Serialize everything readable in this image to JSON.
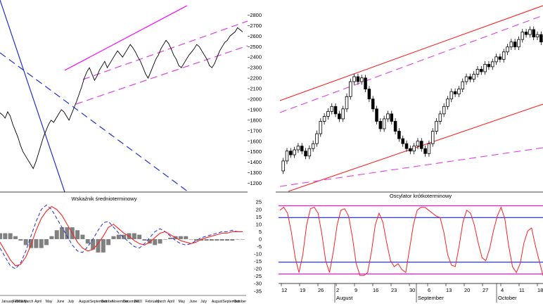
{
  "chart_data": [
    {
      "type": "line",
      "panel": "left-price",
      "title": "",
      "y_ticks": [
        2800,
        2700,
        2600,
        2500,
        2400,
        2300,
        2200,
        2100,
        2000,
        1900,
        1800,
        1700,
        1600,
        1500,
        1400,
        1300,
        1200
      ],
      "ylim": [
        1150,
        2850
      ],
      "grid": false,
      "series": [
        {
          "values": [
            1870,
            1850,
            1820,
            1880,
            1840,
            1760,
            1700,
            1640,
            1560,
            1500,
            1460,
            1420,
            1380,
            1340,
            1400,
            1480,
            1560,
            1640,
            1700,
            1760,
            1800,
            1780,
            1820,
            1860,
            1900,
            1880,
            1840,
            1800,
            1860,
            1920,
            1980,
            2050,
            2120,
            2200,
            2260,
            2300,
            2240,
            2180,
            2220,
            2280,
            2320,
            2360,
            2300,
            2340,
            2380,
            2420,
            2460,
            2430,
            2400,
            2440,
            2480,
            2520,
            2490,
            2450,
            2400,
            2360,
            2300,
            2240,
            2200,
            2260,
            2320,
            2380,
            2420,
            2480,
            2520,
            2560,
            2530,
            2480,
            2420,
            2380,
            2320,
            2300,
            2340,
            2380,
            2420,
            2450,
            2480,
            2520,
            2500,
            2460,
            2420,
            2380,
            2320,
            2300,
            2340,
            2400,
            2460,
            2500,
            2540,
            2560,
            2600,
            2620,
            2640,
            2680,
            2660,
            2640
          ]
        }
      ]
    },
    {
      "type": "line",
      "panel": "left-indicator",
      "title": "Wskaźnik średnioterminowy",
      "x_ticks": [
        "January 2009",
        "February",
        "March",
        "April",
        "May",
        "June",
        "July",
        "August",
        "September",
        "October",
        "November",
        "December",
        "2010",
        "February",
        "March",
        "April",
        "May",
        "June",
        "July",
        "August",
        "September",
        "October"
      ],
      "y_ticks": [
        25,
        20,
        15,
        10,
        5,
        0,
        -5,
        -10,
        -15,
        -20,
        -25,
        -30,
        -35
      ],
      "ylim": [
        -37,
        27
      ],
      "series": [
        {
          "values": [
            -2,
            -8,
            -14,
            -18,
            -17,
            -12,
            -4,
            6,
            14,
            19,
            22,
            20,
            16,
            10,
            4,
            -2,
            -6,
            -8,
            -7,
            -3,
            2,
            8,
            10,
            7,
            4,
            2,
            -1,
            -3,
            -4,
            -2,
            1,
            4,
            5,
            3,
            1,
            -1,
            -2,
            -3,
            -2,
            0,
            1,
            2,
            3,
            4,
            4,
            5,
            5,
            5
          ]
        },
        {
          "values": [
            -6,
            -12,
            -18,
            -20,
            -16,
            -8,
            2,
            12,
            20,
            23,
            20,
            14,
            8,
            2,
            -4,
            -8,
            -9,
            -5,
            0,
            6,
            11,
            12,
            8,
            4,
            1,
            -2,
            -5,
            -6,
            -3,
            1,
            5,
            7,
            5,
            2,
            -1,
            -3,
            -4,
            -3,
            -1,
            1,
            2,
            3,
            4,
            5,
            5,
            6,
            5,
            5
          ]
        }
      ]
    },
    {
      "type": "candlestick",
      "panel": "right-price",
      "title": "",
      "y_ticks": [],
      "grid": false,
      "candles": [
        {
          "o": 1300,
          "c": 1380
        },
        {
          "o": 1380,
          "c": 1460
        },
        {
          "o": 1460,
          "c": 1430
        },
        {
          "o": 1430,
          "c": 1470
        },
        {
          "o": 1470,
          "c": 1500
        },
        {
          "o": 1500,
          "c": 1460
        },
        {
          "o": 1460,
          "c": 1420
        },
        {
          "o": 1420,
          "c": 1480
        },
        {
          "o": 1480,
          "c": 1520
        },
        {
          "o": 1520,
          "c": 1600
        },
        {
          "o": 1600,
          "c": 1700
        },
        {
          "o": 1700,
          "c": 1740
        },
        {
          "o": 1740,
          "c": 1780
        },
        {
          "o": 1780,
          "c": 1820
        },
        {
          "o": 1820,
          "c": 1760
        },
        {
          "o": 1760,
          "c": 1720
        },
        {
          "o": 1720,
          "c": 1800
        },
        {
          "o": 1800,
          "c": 1900
        },
        {
          "o": 1900,
          "c": 2020
        },
        {
          "o": 2020,
          "c": 2060
        },
        {
          "o": 2060,
          "c": 2020
        },
        {
          "o": 2020,
          "c": 2050
        },
        {
          "o": 2050,
          "c": 1960
        },
        {
          "o": 1960,
          "c": 1880
        },
        {
          "o": 1880,
          "c": 1800
        },
        {
          "o": 1800,
          "c": 1700
        },
        {
          "o": 1700,
          "c": 1640
        },
        {
          "o": 1640,
          "c": 1720
        },
        {
          "o": 1720,
          "c": 1760
        },
        {
          "o": 1760,
          "c": 1700
        },
        {
          "o": 1700,
          "c": 1620
        },
        {
          "o": 1620,
          "c": 1560
        },
        {
          "o": 1560,
          "c": 1520
        },
        {
          "o": 1520,
          "c": 1480
        },
        {
          "o": 1480,
          "c": 1460
        },
        {
          "o": 1460,
          "c": 1500
        },
        {
          "o": 1500,
          "c": 1540
        },
        {
          "o": 1540,
          "c": 1480
        },
        {
          "o": 1480,
          "c": 1440
        },
        {
          "o": 1440,
          "c": 1520
        },
        {
          "o": 1520,
          "c": 1620
        },
        {
          "o": 1620,
          "c": 1700
        },
        {
          "o": 1700,
          "c": 1760
        },
        {
          "o": 1760,
          "c": 1820
        },
        {
          "o": 1820,
          "c": 1880
        },
        {
          "o": 1880,
          "c": 1940
        },
        {
          "o": 1940,
          "c": 1920
        },
        {
          "o": 1920,
          "c": 1960
        },
        {
          "o": 1960,
          "c": 2020
        },
        {
          "o": 2020,
          "c": 2060
        },
        {
          "o": 2060,
          "c": 2040
        },
        {
          "o": 2040,
          "c": 2080
        },
        {
          "o": 2080,
          "c": 2120
        },
        {
          "o": 2120,
          "c": 2100
        },
        {
          "o": 2100,
          "c": 2160
        },
        {
          "o": 2160,
          "c": 2140
        },
        {
          "o": 2140,
          "c": 2180
        },
        {
          "o": 2180,
          "c": 2220
        },
        {
          "o": 2220,
          "c": 2200
        },
        {
          "o": 2200,
          "c": 2260
        },
        {
          "o": 2260,
          "c": 2300
        },
        {
          "o": 2300,
          "c": 2340
        },
        {
          "o": 2340,
          "c": 2300
        },
        {
          "o": 2300,
          "c": 2360
        },
        {
          "o": 2360,
          "c": 2420
        },
        {
          "o": 2420,
          "c": 2400
        },
        {
          "o": 2400,
          "c": 2440
        },
        {
          "o": 2440,
          "c": 2380
        },
        {
          "o": 2380,
          "c": 2400
        },
        {
          "o": 2400,
          "c": 2340
        }
      ],
      "x_ticks": [
        "12",
        "19",
        "26",
        "2",
        "9",
        "16",
        "23",
        "30",
        "6",
        "13",
        "20",
        "27",
        "4",
        "11",
        "18"
      ],
      "month_labels": [
        "August",
        "September",
        "October"
      ]
    },
    {
      "type": "line",
      "panel": "right-oscillator",
      "title": "Oscylator krótkoterminowy",
      "levels": [
        23,
        15,
        -15,
        -23
      ],
      "ylim": [
        -27,
        27
      ],
      "series": [
        {
          "values": [
            20,
            22,
            18,
            5,
            -12,
            -22,
            -10,
            10,
            21,
            22,
            18,
            4,
            -14,
            -22,
            -8,
            10,
            20,
            21,
            16,
            2,
            -16,
            -24,
            -24,
            -22,
            -8,
            10,
            18,
            12,
            -2,
            -14,
            -18,
            -16,
            -20,
            -22,
            -6,
            10,
            20,
            22,
            22,
            20,
            18,
            16,
            15,
            5,
            -10,
            -17,
            -18,
            -4,
            12,
            20,
            18,
            10,
            -2,
            -12,
            -14,
            -6,
            6,
            16,
            22,
            14,
            -4,
            -18,
            -22,
            -16,
            -2,
            6,
            8,
            -4,
            -14,
            -24
          ]
        }
      ]
    }
  ],
  "colors": {
    "price_line": "#000000",
    "channel_solid_magenta": "#ff00ff",
    "channel_dashed_magenta": "#e040e0",
    "downtrend_blue": "#2030d0",
    "channel_red": "#ff2020",
    "osc_red": "#ff2020",
    "osc_blue_level": "#1020e0",
    "osc_magenta_level": "#ff00ff",
    "histogram_gray": "#808080"
  }
}
